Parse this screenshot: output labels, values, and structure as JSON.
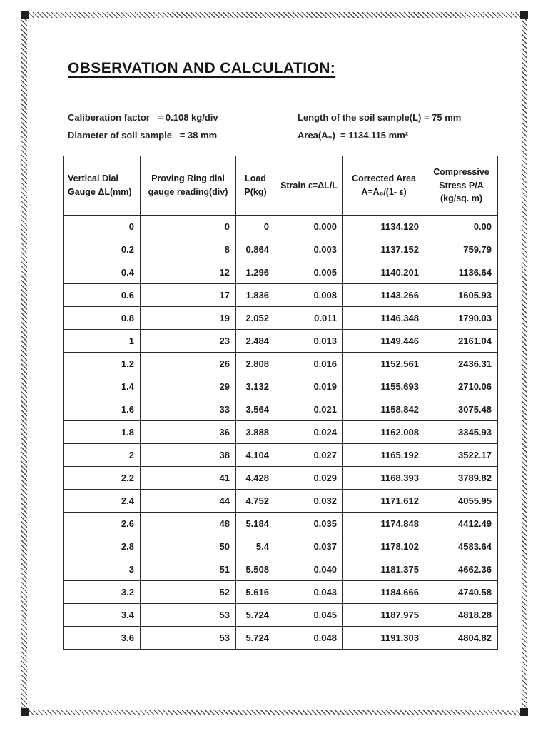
{
  "document": {
    "title": "OBSERVATION AND CALCULATION:",
    "info": {
      "left": [
        "Caliberation factor   = 0.108 kg/div",
        "Diameter of soil sample   = 38 mm"
      ],
      "right": [
        "Length of the soil sample(L) = 75 mm",
        "Area(A₀)  = 1134.115 mm²"
      ]
    }
  },
  "table": {
    "headers": [
      "Vertical Dial\nGauge ΔL(mm)",
      "Proving Ring dial\ngauge reading(div)",
      "Load\nP(kg)",
      "Strain ε=ΔL/L",
      "Corrected Area\nA=A₀/(1- ε)",
      "Compressive\nStress P/A\n(kg/sq. m)"
    ],
    "rows": [
      [
        "0",
        "0",
        "0",
        "0.000",
        "1134.120",
        "0.00"
      ],
      [
        "0.2",
        "8",
        "0.864",
        "0.003",
        "1137.152",
        "759.79"
      ],
      [
        "0.4",
        "12",
        "1.296",
        "0.005",
        "1140.201",
        "1136.64"
      ],
      [
        "0.6",
        "17",
        "1.836",
        "0.008",
        "1143.266",
        "1605.93"
      ],
      [
        "0.8",
        "19",
        "2.052",
        "0.011",
        "1146.348",
        "1790.03"
      ],
      [
        "1",
        "23",
        "2.484",
        "0.013",
        "1149.446",
        "2161.04"
      ],
      [
        "1.2",
        "26",
        "2.808",
        "0.016",
        "1152.561",
        "2436.31"
      ],
      [
        "1.4",
        "29",
        "3.132",
        "0.019",
        "1155.693",
        "2710.06"
      ],
      [
        "1.6",
        "33",
        "3.564",
        "0.021",
        "1158.842",
        "3075.48"
      ],
      [
        "1.8",
        "36",
        "3.888",
        "0.024",
        "1162.008",
        "3345.93"
      ],
      [
        "2",
        "38",
        "4.104",
        "0.027",
        "1165.192",
        "3522.17"
      ],
      [
        "2.2",
        "41",
        "4.428",
        "0.029",
        "1168.393",
        "3789.82"
      ],
      [
        "2.4",
        "44",
        "4.752",
        "0.032",
        "1171.612",
        "4055.95"
      ],
      [
        "2.6",
        "48",
        "5.184",
        "0.035",
        "1174.848",
        "4412.49"
      ],
      [
        "2.8",
        "50",
        "5.4",
        "0.037",
        "1178.102",
        "4583.64"
      ],
      [
        "3",
        "51",
        "5.508",
        "0.040",
        "1181.375",
        "4662.36"
      ],
      [
        "3.2",
        "52",
        "5.616",
        "0.043",
        "1184.666",
        "4740.58"
      ],
      [
        "3.4",
        "53",
        "5.724",
        "0.045",
        "1187.975",
        "4818.28"
      ],
      [
        "3.6",
        "53",
        "5.724",
        "0.048",
        "1191.303",
        "4804.82"
      ]
    ]
  }
}
